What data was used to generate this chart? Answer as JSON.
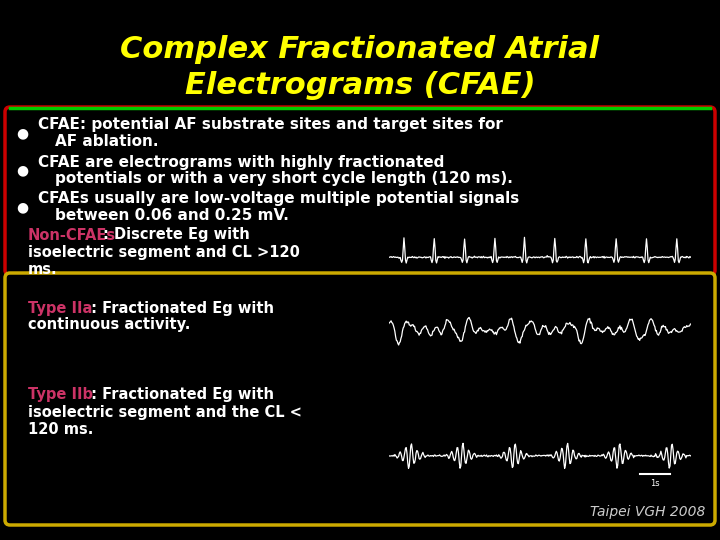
{
  "background_color": "#000000",
  "title_line1": "Complex Fractionated Atrial",
  "title_line2": "Electrograms (CFAE)",
  "title_color": "#FFFF00",
  "title_fontsize": 22,
  "separator_color_green": "#00CC00",
  "bullet_box_border_color": "#CC0000",
  "bullet_text_color": "#FFFFFF",
  "non_cfae_label_color": "#CC3366",
  "non_cfae_label": "Non-CFAEs",
  "non_cfae_text_line1": ": Discrete Eg with",
  "non_cfae_text_line2": "isoelectric segment and CL >120",
  "non_cfae_text_line3": "ms.",
  "type_iia_label_color": "#CC3366",
  "type_iia_label": "Type IIa",
  "type_iia_text_line1": " : Fractionated Eg with",
  "type_iia_text_line2": "continuous activity.",
  "type_iib_label_color": "#CC3366",
  "type_iib_label": "Type IIb",
  "type_iib_text_line1": " : Fractionated Eg with",
  "type_iib_text_line2": "isoelectric segment and the CL <",
  "type_iib_text_line3": "120 ms.",
  "lower_box_border_color": "#CCAA00",
  "footer_text": "Taipei VGH 2008",
  "footer_color": "#CCCCCC",
  "white_text_color": "#FFFFFF",
  "bold_text_color": "#FFFFFF"
}
